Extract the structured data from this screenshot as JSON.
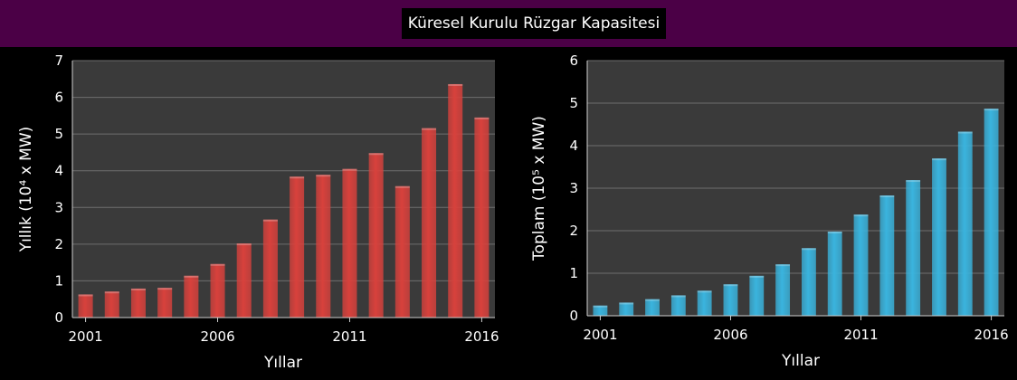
{
  "title": "Küresel Kurulu Rüzgar Kapasitesi",
  "colors": {
    "banner": "#4b0046",
    "plot_bg": "#3a3a3a",
    "grid": "#6e6e6e",
    "annual_bar": "#d8413c",
    "total_bar": "#3ab4de"
  },
  "chart_data": [
    {
      "type": "bar",
      "ylabel": "Yıllık    (10⁴ x MW)",
      "xlabel": "Yıllar",
      "x_ticks": [
        "2001",
        "2006",
        "2011",
        "2016"
      ],
      "y_ticks": [
        "0",
        "1",
        "2",
        "3",
        "4",
        "5",
        "6",
        "7"
      ],
      "ylim": [
        0,
        7
      ],
      "grid": true,
      "categories": [
        "2001",
        "2002",
        "2003",
        "2004",
        "2005",
        "2006",
        "2007",
        "2008",
        "2009",
        "2010",
        "2011",
        "2012",
        "2013",
        "2014",
        "2015",
        "2016"
      ],
      "values": [
        0.63,
        0.71,
        0.79,
        0.81,
        1.14,
        1.46,
        2.02,
        2.67,
        3.84,
        3.89,
        4.05,
        4.48,
        3.58,
        5.16,
        6.36,
        5.45
      ]
    },
    {
      "type": "bar",
      "ylabel": "Toplam    (10⁵ x MW)",
      "xlabel": "Yıllar",
      "x_ticks": [
        "2001",
        "2006",
        "2011",
        "2016"
      ],
      "y_ticks": [
        "0",
        "1",
        "2",
        "3",
        "4",
        "5",
        "6"
      ],
      "ylim": [
        0,
        6
      ],
      "grid": true,
      "categories": [
        "2001",
        "2002",
        "2003",
        "2004",
        "2005",
        "2006",
        "2007",
        "2008",
        "2009",
        "2010",
        "2011",
        "2012",
        "2013",
        "2014",
        "2015",
        "2016"
      ],
      "values": [
        0.24,
        0.31,
        0.39,
        0.48,
        0.59,
        0.74,
        0.94,
        1.21,
        1.59,
        1.98,
        2.38,
        2.83,
        3.19,
        3.7,
        4.33,
        4.87
      ]
    }
  ]
}
